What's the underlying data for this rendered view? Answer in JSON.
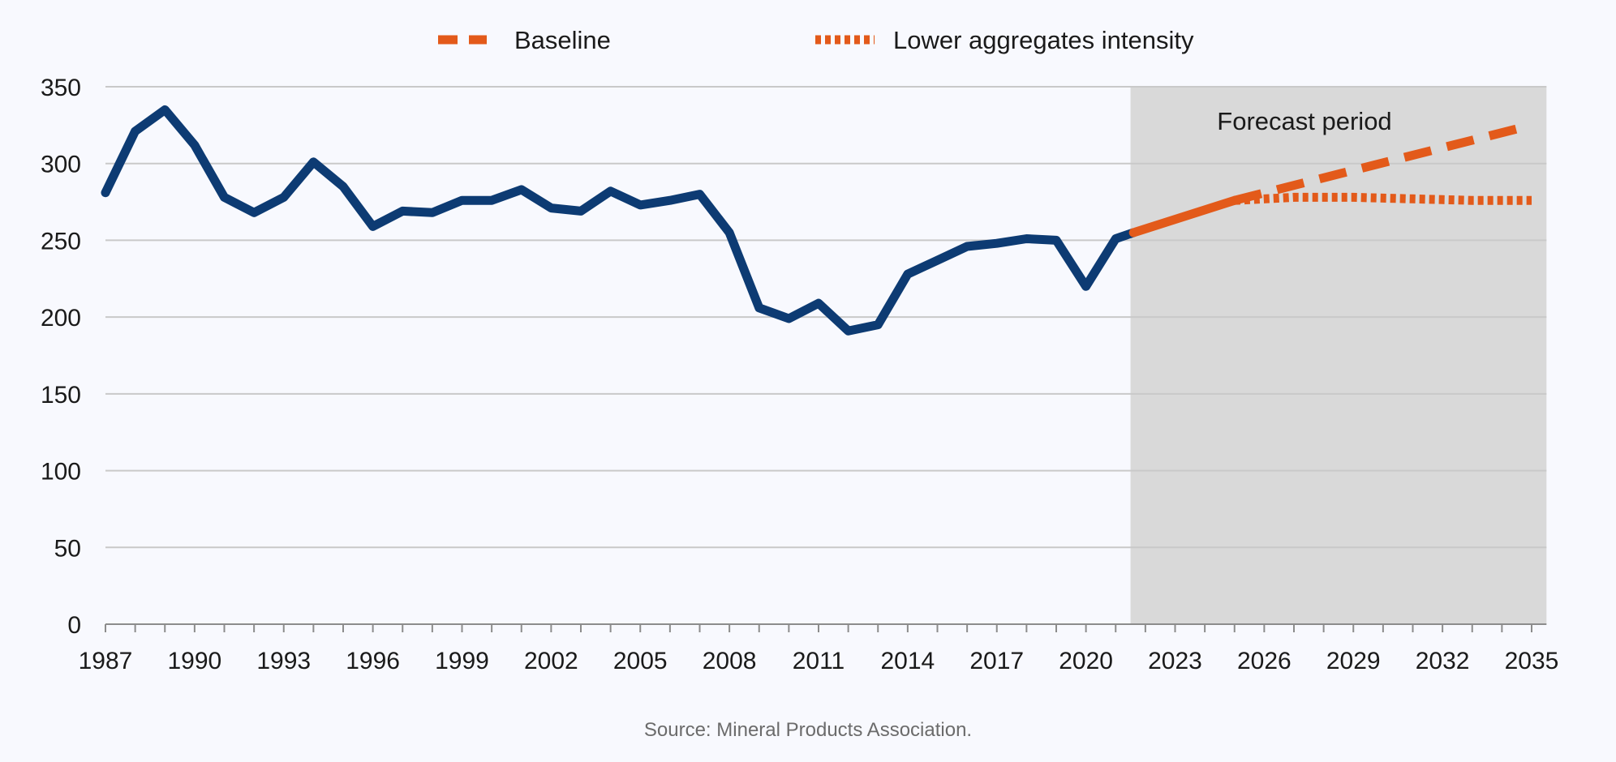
{
  "chart_data": {
    "type": "line",
    "title": "",
    "xlabel": "",
    "ylabel": "",
    "xlim": [
      1987,
      2035
    ],
    "ylim": [
      0,
      350
    ],
    "x_ticks": [
      1987,
      1990,
      1993,
      1996,
      1999,
      2002,
      2005,
      2008,
      2011,
      2014,
      2017,
      2020,
      2023,
      2026,
      2029,
      2032,
      2035
    ],
    "y_ticks": [
      0,
      50,
      100,
      150,
      200,
      250,
      300,
      350
    ],
    "grid": "horizontal",
    "legend_position": "top-center",
    "legend": [
      {
        "label": "Baseline",
        "style": "dashed",
        "color": "#e35a1a"
      },
      {
        "label": "Lower aggregates intensity",
        "style": "dotted",
        "color": "#e35a1a"
      }
    ],
    "forecast_region": {
      "x_start": 2021.5,
      "x_end": 2035.5,
      "label": "Forecast period",
      "color": "#d9d9d9"
    },
    "series": [
      {
        "style": "solid",
        "color": "#0d3b73",
        "points": [
          [
            1987,
            281
          ],
          [
            1988,
            321
          ],
          [
            1989,
            335
          ],
          [
            1990,
            312
          ],
          [
            1991,
            278
          ],
          [
            1992,
            268
          ],
          [
            1993,
            278
          ],
          [
            1994,
            301
          ],
          [
            1995,
            285
          ],
          [
            1996,
            259
          ],
          [
            1997,
            269
          ],
          [
            1998,
            268
          ],
          [
            1999,
            276
          ],
          [
            2000,
            276
          ],
          [
            2001,
            283
          ],
          [
            2002,
            271
          ],
          [
            2003,
            269
          ],
          [
            2004,
            282
          ],
          [
            2005,
            273
          ],
          [
            2006,
            276
          ],
          [
            2007,
            280
          ],
          [
            2008,
            255
          ],
          [
            2009,
            206
          ],
          [
            2010,
            199
          ],
          [
            2011,
            209
          ],
          [
            2012,
            191
          ],
          [
            2013,
            195
          ],
          [
            2014,
            228
          ],
          [
            2015,
            237
          ],
          [
            2016,
            246
          ],
          [
            2017,
            248
          ],
          [
            2018,
            251
          ],
          [
            2019,
            250
          ],
          [
            2020,
            220
          ],
          [
            2021,
            251
          ],
          [
            2021.6,
            255
          ]
        ]
      },
      {
        "style": "solid",
        "color": "#e35a1a",
        "points": [
          [
            2021.6,
            255
          ],
          [
            2025,
            276
          ]
        ]
      },
      {
        "name": "Baseline",
        "style": "dashed",
        "color": "#e35a1a",
        "points": [
          [
            2025,
            276
          ],
          [
            2035,
            325
          ]
        ]
      },
      {
        "name": "Lower aggregates intensity",
        "style": "dotted",
        "color": "#e35a1a",
        "points": [
          [
            2025,
            276
          ],
          [
            2027,
            278
          ],
          [
            2029,
            278
          ],
          [
            2031,
            277
          ],
          [
            2033,
            276
          ],
          [
            2035,
            276
          ]
        ]
      }
    ],
    "source": "Source: Mineral Products Association."
  }
}
